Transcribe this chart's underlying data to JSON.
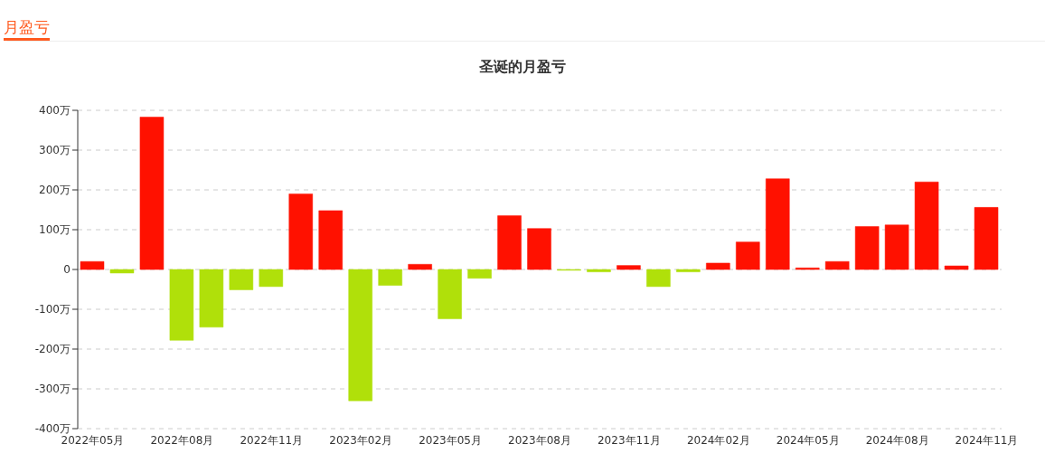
{
  "chart_data": {
    "type": "bar",
    "title": "圣诞的月盈亏",
    "annotations": [
      "月盈亏"
    ],
    "categories": [
      "2022年05月",
      null,
      null,
      "2022年08月",
      null,
      null,
      "2022年11月",
      null,
      null,
      "2023年02月",
      null,
      null,
      "2023年05月",
      null,
      null,
      "2023年08月",
      null,
      null,
      "2023年11月",
      null,
      null,
      "2024年02月",
      null,
      null,
      "2024年05月",
      null,
      null,
      "2024年08月",
      null,
      null,
      "2024年11月"
    ],
    "values": [
      20,
      -9,
      383,
      -178,
      -145,
      -51,
      -43,
      190,
      148,
      -330,
      -40,
      13,
      -124,
      -22,
      135,
      103,
      -2,
      -6,
      10,
      -43,
      -6,
      16,
      69,
      228,
      4,
      20,
      108,
      112,
      220,
      9,
      156
    ],
    "colors": [
      "#ff1100",
      "#b0e00a",
      "#ff1100",
      "#b0e00a",
      "#b0e00a",
      "#b0e00a",
      "#b0e00a",
      "#ff1100",
      "#ff1100",
      "#b0e00a",
      "#b0e00a",
      "#ff1100",
      "#b0e00a",
      "#b0e00a",
      "#ff1100",
      "#ff1100",
      "#b0e00a",
      "#b0e00a",
      "#ff1100",
      "#b0e00a",
      "#b0e00a",
      "#ff1100",
      "#ff1100",
      "#ff1100",
      "#ff1100",
      "#ff1100",
      "#ff1100",
      "#ff1100",
      "#ff1100",
      "#ff1100",
      "#ff1100"
    ],
    "ylim": [
      -400,
      400
    ],
    "yticks": [
      {
        "value": -400,
        "label": "-400万"
      },
      {
        "value": -300,
        "label": "-300万"
      },
      {
        "value": -200,
        "label": "-200万"
      },
      {
        "value": -100,
        "label": "-100万"
      },
      0,
      {
        "value": 100,
        "label": "100万"
      },
      {
        "value": 200,
        "label": "200万"
      },
      {
        "value": 300,
        "label": "300万"
      },
      {
        "value": 400,
        "label": "400万"
      }
    ],
    "grid": "y",
    "legend": false
  }
}
